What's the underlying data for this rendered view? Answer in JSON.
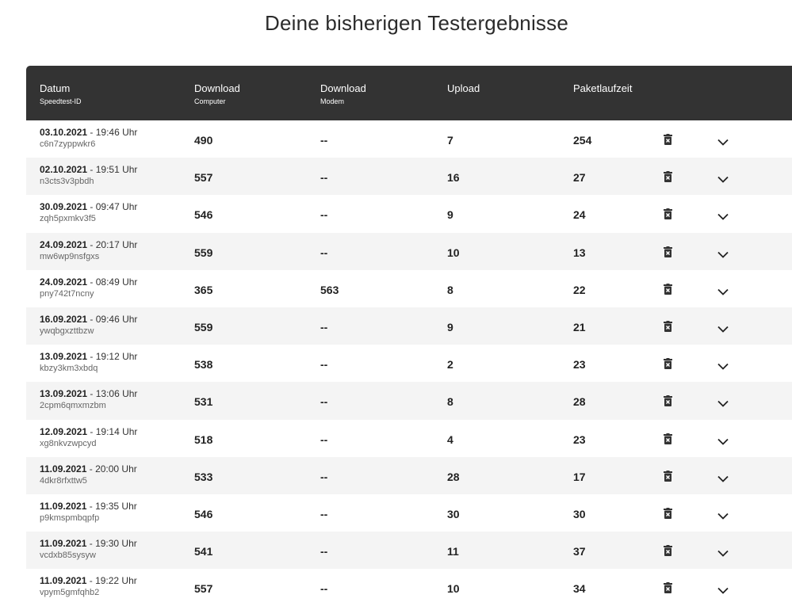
{
  "title": "Deine bisherigen Testergebnisse",
  "columns": {
    "date": {
      "label": "Datum",
      "sub": "Speedtest-ID"
    },
    "download_computer": {
      "label": "Download",
      "sub": "Computer"
    },
    "download_modem": {
      "label": "Download",
      "sub": "Modem"
    },
    "upload": {
      "label": "Upload"
    },
    "latency": {
      "label": "Paketlaufzeit"
    }
  },
  "icons": {
    "delete": "trash-icon",
    "expand": "chevron-down-icon"
  },
  "colors": {
    "header_bg": "#333333",
    "row_alt_bg": "#f4f4f4"
  },
  "rows": [
    {
      "date": "03.10.2021",
      "time": " - 19:46 Uhr",
      "id": "c6n7zyppwkr6",
      "dl_computer": "490",
      "dl_modem": "--",
      "upload": "7",
      "latency": "254"
    },
    {
      "date": "02.10.2021",
      "time": " - 19:51 Uhr",
      "id": "n3cts3v3pbdh",
      "dl_computer": "557",
      "dl_modem": "--",
      "upload": "16",
      "latency": "27"
    },
    {
      "date": "30.09.2021",
      "time": " - 09:47 Uhr",
      "id": "zqh5pxmkv3f5",
      "dl_computer": "546",
      "dl_modem": "--",
      "upload": "9",
      "latency": "24"
    },
    {
      "date": "24.09.2021",
      "time": " - 20:17 Uhr",
      "id": "mw6wp9nsfgxs",
      "dl_computer": "559",
      "dl_modem": "--",
      "upload": "10",
      "latency": "13"
    },
    {
      "date": "24.09.2021",
      "time": " - 08:49 Uhr",
      "id": "pny742t7ncny",
      "dl_computer": "365",
      "dl_modem": "563",
      "upload": "8",
      "latency": "22"
    },
    {
      "date": "16.09.2021",
      "time": " - 09:46 Uhr",
      "id": "ywqbgxzttbzw",
      "dl_computer": "559",
      "dl_modem": "--",
      "upload": "9",
      "latency": "21"
    },
    {
      "date": "13.09.2021",
      "time": " - 19:12 Uhr",
      "id": "kbzy3km3xbdq",
      "dl_computer": "538",
      "dl_modem": "--",
      "upload": "2",
      "latency": "23"
    },
    {
      "date": "13.09.2021",
      "time": " - 13:06 Uhr",
      "id": "2cpm6qmxmzbm",
      "dl_computer": "531",
      "dl_modem": "--",
      "upload": "8",
      "latency": "28"
    },
    {
      "date": "12.09.2021",
      "time": " - 19:14 Uhr",
      "id": "xg8nkvzwpcyd",
      "dl_computer": "518",
      "dl_modem": "--",
      "upload": "4",
      "latency": "23"
    },
    {
      "date": "11.09.2021",
      "time": " - 20:00 Uhr",
      "id": "4dkr8rfxttw5",
      "dl_computer": "533",
      "dl_modem": "--",
      "upload": "28",
      "latency": "17"
    },
    {
      "date": "11.09.2021",
      "time": " - 19:35 Uhr",
      "id": "p9kmspmbqpfp",
      "dl_computer": "546",
      "dl_modem": "--",
      "upload": "30",
      "latency": "30"
    },
    {
      "date": "11.09.2021",
      "time": " - 19:30 Uhr",
      "id": "vcdxb85sysyw",
      "dl_computer": "541",
      "dl_modem": "--",
      "upload": "11",
      "latency": "37"
    },
    {
      "date": "11.09.2021",
      "time": " - 19:22 Uhr",
      "id": "vpym5gmfqhb2",
      "dl_computer": "557",
      "dl_modem": "--",
      "upload": "10",
      "latency": "34"
    }
  ]
}
